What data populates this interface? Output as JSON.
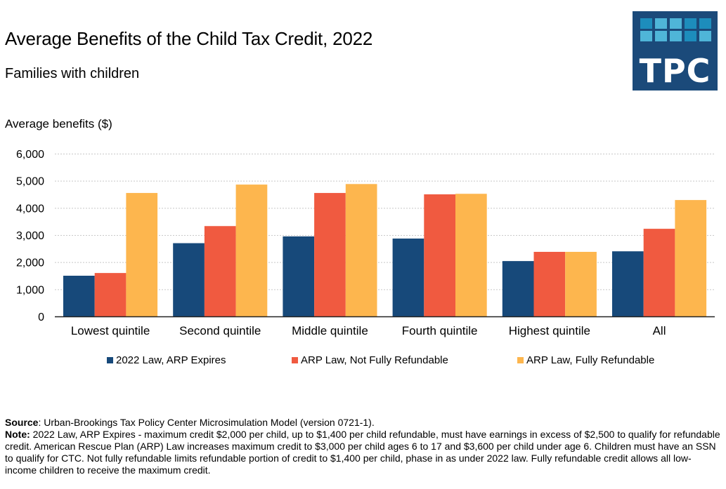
{
  "header": {
    "title": "Average Benefits of the Child Tax Credit, 2022",
    "subtitle": "Families with children",
    "logo_text": "TPC"
  },
  "colors": {
    "series_1": "#17497A",
    "series_2": "#F05A40",
    "series_3": "#FDB64E",
    "logo_bg": "#1B4A7A"
  },
  "chart_data": {
    "type": "bar",
    "title": "Average Benefits of the Child Tax Credit, 2022",
    "subtitle": "Families with children",
    "xlabel": "",
    "ylabel": "Average benefits ($)",
    "ylim": [
      0,
      6000
    ],
    "yticks": [
      0,
      1000,
      2000,
      3000,
      4000,
      5000,
      6000
    ],
    "ytick_labels": [
      "0",
      "1,000",
      "2,000",
      "3,000",
      "4,000",
      "5,000",
      "6,000"
    ],
    "grid": true,
    "legend_position": "bottom",
    "categories": [
      "Lowest quintile",
      "Second quintile",
      "Middle quintile",
      "Fourth quintile",
      "Highest quintile",
      "All"
    ],
    "series": [
      {
        "name": "2022 Law, ARP Expires",
        "color": "#17497A",
        "values": [
          1500,
          2700,
          2950,
          2870,
          2040,
          2400
        ]
      },
      {
        "name": "ARP Law, Not Fully Refundable",
        "color": "#F05A40",
        "values": [
          1600,
          3330,
          4550,
          4500,
          2380,
          3230
        ]
      },
      {
        "name": "ARP Law, Fully Refundable",
        "color": "#FDB64E",
        "values": [
          4550,
          4860,
          4880,
          4520,
          2380,
          4290
        ]
      }
    ]
  },
  "footer": {
    "source_label": "Source",
    "source_text": ": Urban-Brookings Tax Policy Center Microsimulation Model (version 0721-1).",
    "note_label": "Note:",
    "note_text": " 2022 Law, ARP Expires - maximum credit $2,000 per child, up to $1,400 per child refundable, must have earnings in excess of $2,500 to qualify for refundable credit. American Rescue Plan (ARP) Law increases maximum credit to $3,000 per child ages 6 to 17 and $3,600 per child under age 6. Children must have an SSN to qualify for CTC. Not fully refundable limits refundable portion of credit to $1,400 per child, phase in as under 2022 law. Fully refundable credit allows all low-income children to receive the maximum credit."
  }
}
